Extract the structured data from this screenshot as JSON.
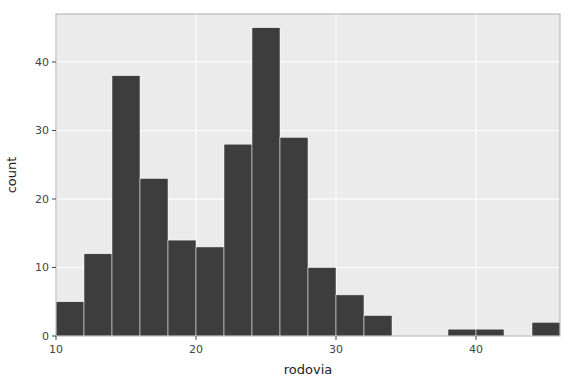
{
  "chart_data": {
    "type": "histogram",
    "bins": [
      10,
      12,
      14,
      16,
      18,
      20,
      22,
      24,
      26,
      28,
      30,
      32,
      34,
      36,
      38,
      40,
      42,
      44,
      46
    ],
    "values": [
      5,
      12,
      38,
      23,
      14,
      13,
      28,
      45,
      29,
      10,
      6,
      3,
      0,
      0,
      1,
      1,
      0,
      2
    ],
    "color": "#3d3d3d",
    "xlabel": "rodovia",
    "ylabel": "count",
    "xlim": [
      10,
      46
    ],
    "ylim": [
      0,
      47
    ],
    "xticks": [
      10,
      20,
      30,
      40
    ],
    "yticks": [
      0,
      10,
      20,
      30,
      40
    ],
    "grid": true
  }
}
